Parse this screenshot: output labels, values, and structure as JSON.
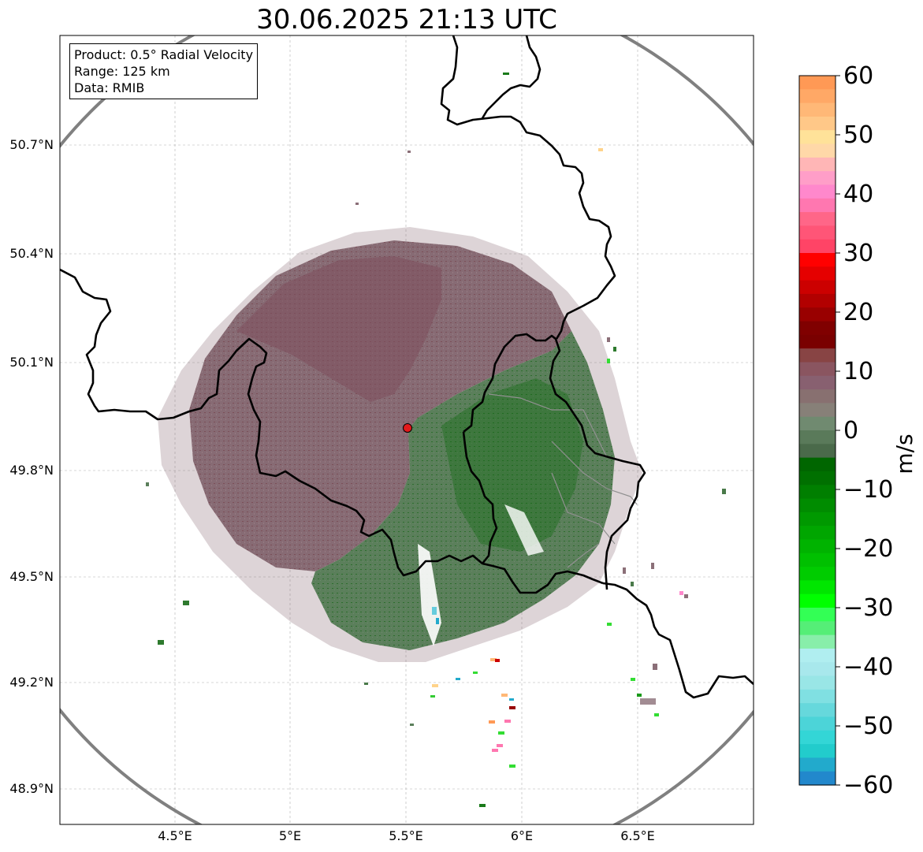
{
  "title": "30.06.2025 21:13 UTC",
  "info": {
    "product": "Product: 0.5° Radial Velocity",
    "range": "Range: 125 km",
    "data": "Data: RMIB"
  },
  "map": {
    "lat_labels": [
      "50.7°N",
      "50.4°N",
      "50.1°N",
      "49.8°N",
      "49.5°N",
      "49.2°N",
      "48.9°N"
    ],
    "lon_labels": [
      "4.5°E",
      "5°E",
      "5.5°E",
      "6°E",
      "6.5°E"
    ],
    "radar_site_color": "#e31a1c"
  },
  "colorbar": {
    "unit": "m/s",
    "min": -60,
    "max": 60,
    "ticks": [
      "60",
      "50",
      "40",
      "30",
      "20",
      "10",
      "0",
      "−10",
      "−20",
      "−30",
      "−40",
      "−50",
      "−60"
    ],
    "colors_top_to_bottom": [
      "#ff9955",
      "#ffa866",
      "#ffb877",
      "#ffc888",
      "#ffe299",
      "#ffd8a8",
      "#ffb6b6",
      "#ff9ec8",
      "#ff88cc",
      "#ff77b0",
      "#ff6688",
      "#ff5577",
      "#ff4466",
      "#ff0000",
      "#e50000",
      "#cc0000",
      "#b20000",
      "#990000",
      "#800000",
      "#7a0000",
      "#884444",
      "#8a5560",
      "#886070",
      "#887070",
      "#878078",
      "#708a70",
      "#5a7a5a",
      "#4a6a4a",
      "#006600",
      "#007000",
      "#007f00",
      "#008c00",
      "#009900",
      "#00a600",
      "#00b300",
      "#00c000",
      "#00cc00",
      "#00e600",
      "#00ff00",
      "#33ff55",
      "#55ee77",
      "#88eeaa",
      "#b0eef0",
      "#a8e8ec",
      "#99e6e6",
      "#80e0e2",
      "#66d8dc",
      "#4cd4d8",
      "#33d6d6",
      "#22cccc",
      "#22aacc",
      "#2288cc"
    ]
  }
}
